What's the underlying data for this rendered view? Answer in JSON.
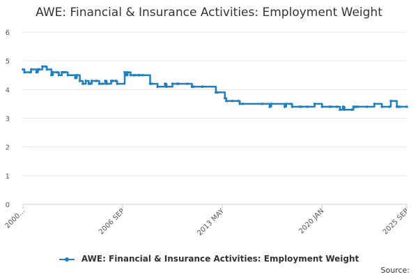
{
  "colors": {
    "series": "#1f7fbf",
    "grid": "#e6e6e6",
    "axis": "#cccccc"
  },
  "footer": {
    "source_label": "Source:"
  },
  "chart_data": {
    "type": "line",
    "title": "AWE: Financial & Insurance Activities: Employment Weight",
    "xlabel": "",
    "ylabel": "",
    "ylim": [
      0,
      6
    ],
    "yticks": [
      0,
      1,
      2,
      3,
      4,
      5,
      6
    ],
    "xlim": [
      2000.0,
      2025.67
    ],
    "xtick_labels": [
      {
        "label": "2000...",
        "x": 2000.0
      },
      {
        "label": "2006 SEP",
        "x": 2006.67
      },
      {
        "label": "2013 MAY",
        "x": 2013.33
      },
      {
        "label": "2020 JAN",
        "x": 2020.0
      },
      {
        "label": "2025 SEP",
        "x": 2025.67
      }
    ],
    "legend": {
      "position": "bottom"
    },
    "series": [
      {
        "name": "AWE: Financial & Insurance Activities: Employment Weight",
        "x": [
          2000.0,
          2000.1,
          2000.5,
          2000.55,
          2000.9,
          2001.0,
          2001.1,
          2001.3,
          2001.5,
          2001.6,
          2001.9,
          2002.0,
          2002.3,
          2002.4,
          2002.6,
          2002.7,
          2002.8,
          2003.0,
          2003.5,
          2003.6,
          2003.8,
          2004.0,
          2004.2,
          2004.4,
          2004.5,
          2004.6,
          2004.9,
          2005.1,
          2005.3,
          2005.5,
          2005.6,
          2005.9,
          2006.0,
          2006.2,
          2006.3,
          2006.8,
          2006.9,
          2007.0,
          2007.2,
          2007.4,
          2007.5,
          2007.7,
          2007.8,
          2008.0,
          2008.5,
          2008.6,
          2009.0,
          2009.5,
          2009.6,
          2010.0,
          2010.3,
          2010.4,
          2011.0,
          2011.3,
          2011.4,
          2012.0,
          2012.9,
          2013.0,
          2013.5,
          2013.6,
          2014.0,
          2014.4,
          2014.5,
          2014.7,
          2016.0,
          2016.5,
          2016.6,
          2017.5,
          2017.6,
          2017.9,
          2018.0,
          2018.5,
          2018.6,
          2019.0,
          2019.5,
          2020.0,
          2020.5,
          2020.6,
          2021.0,
          2021.2,
          2021.4,
          2021.5,
          2022.0,
          2022.1,
          2022.2,
          2022.3,
          2022.4,
          2023.0,
          2023.5,
          2024.0,
          2024.5,
          2024.6,
          2025.0,
          2025.1,
          2025.2,
          2025.67
        ],
        "y": [
          4.7,
          4.6,
          4.6,
          4.7,
          4.6,
          4.7,
          4.7,
          4.8,
          4.8,
          4.7,
          4.5,
          4.6,
          4.6,
          4.5,
          4.6,
          4.6,
          4.6,
          4.5,
          4.4,
          4.5,
          4.3,
          4.2,
          4.3,
          4.2,
          4.2,
          4.3,
          4.3,
          4.2,
          4.2,
          4.3,
          4.2,
          4.3,
          4.3,
          4.3,
          4.2,
          4.6,
          4.5,
          4.6,
          4.5,
          4.5,
          4.5,
          4.5,
          4.5,
          4.5,
          4.2,
          4.2,
          4.1,
          4.2,
          4.1,
          4.2,
          4.2,
          4.2,
          4.2,
          4.1,
          4.1,
          4.1,
          3.9,
          3.9,
          3.7,
          3.6,
          3.6,
          3.6,
          3.5,
          3.5,
          3.5,
          3.4,
          3.5,
          3.4,
          3.5,
          3.5,
          3.4,
          3.4,
          3.4,
          3.4,
          3.5,
          3.4,
          3.4,
          3.4,
          3.4,
          3.3,
          3.4,
          3.3,
          3.3,
          3.4,
          3.4,
          3.4,
          3.4,
          3.4,
          3.5,
          3.4,
          3.4,
          3.6,
          3.4,
          3.4,
          3.4,
          3.4
        ]
      }
    ]
  }
}
